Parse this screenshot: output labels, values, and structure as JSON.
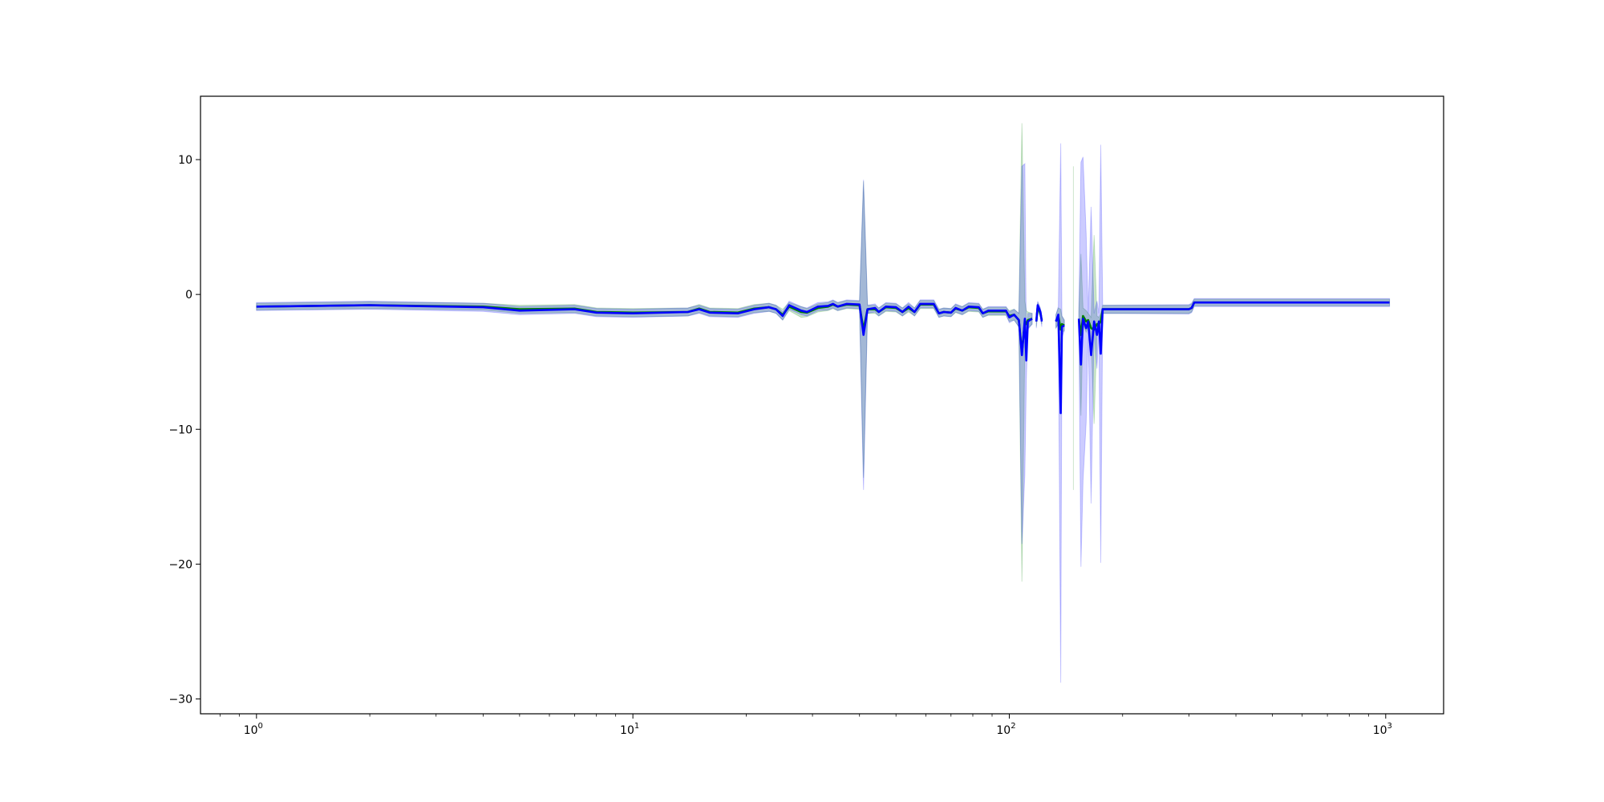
{
  "chart_data": {
    "type": "line",
    "title": "",
    "xlabel": "",
    "ylabel": "",
    "xscale": "log",
    "xlim": [
      0.71,
      1425
    ],
    "ylim": [
      -31.1,
      14.7
    ],
    "grid": false,
    "x_ticks": [
      {
        "value": 1,
        "base": "10",
        "exp": "0"
      },
      {
        "value": 10,
        "base": "10",
        "exp": "1"
      },
      {
        "value": 100,
        "base": "10",
        "exp": "2"
      },
      {
        "value": 1000,
        "base": "10",
        "exp": "3"
      }
    ],
    "y_ticks": [
      {
        "value": 10,
        "label": "10"
      },
      {
        "value": 0,
        "label": "0"
      },
      {
        "value": -10,
        "label": "−10"
      },
      {
        "value": -20,
        "label": "−20"
      },
      {
        "value": -30,
        "label": "−30"
      }
    ],
    "series": [
      {
        "color": "#008000",
        "band_color": "#008000",
        "points": [
          [
            1,
            -0.9,
            0.25
          ],
          [
            2,
            -0.8,
            0.25
          ],
          [
            4,
            -0.9,
            0.25
          ],
          [
            5,
            -1.1,
            0.3
          ],
          [
            7,
            -1.05,
            0.3
          ],
          [
            8,
            -1.3,
            0.3
          ],
          [
            10,
            -1.35,
            0.3
          ],
          [
            14,
            -1.3,
            0.3
          ],
          [
            15,
            -1.05,
            0.3
          ],
          [
            16,
            -1.3,
            0.3
          ],
          [
            19,
            -1.35,
            0.3
          ],
          [
            21,
            -1.05,
            0.3
          ],
          [
            23,
            -0.95,
            0.3
          ],
          [
            24,
            -1.1,
            0.3
          ],
          [
            25,
            -1.5,
            0.4
          ],
          [
            26,
            -0.9,
            0.3
          ],
          [
            28,
            -1.3,
            0.4
          ],
          [
            29,
            -1.35,
            0.3
          ],
          [
            31,
            -1.0,
            0.3
          ],
          [
            33,
            -0.9,
            0.3
          ],
          [
            34,
            -0.75,
            0.3
          ],
          [
            35,
            -0.9,
            0.3
          ],
          [
            37,
            -0.75,
            0.3
          ],
          [
            40,
            -0.8,
            0.3
          ],
          [
            41,
            -2.6,
            11
          ],
          [
            42,
            -1.1,
            0.3
          ],
          [
            44,
            -1.1,
            0.3
          ],
          [
            45,
            -1.3,
            0.3
          ],
          [
            47,
            -0.95,
            0.3
          ],
          [
            50,
            -1.0,
            0.3
          ],
          [
            52,
            -1.3,
            0.3
          ],
          [
            54,
            -1.0,
            0.3
          ],
          [
            56,
            -1.3,
            0.3
          ],
          [
            58,
            -0.75,
            0.3
          ],
          [
            63,
            -0.75,
            0.3
          ],
          [
            65,
            -1.4,
            0.3
          ],
          [
            67,
            -1.3,
            0.3
          ],
          [
            70,
            -1.35,
            0.3
          ],
          [
            72,
            -1.05,
            0.3
          ],
          [
            75,
            -1.2,
            0.3
          ],
          [
            78,
            -0.95,
            0.3
          ],
          [
            83,
            -1.0,
            0.3
          ],
          [
            85,
            -1.4,
            0.3
          ],
          [
            88,
            -1.25,
            0.3
          ],
          [
            98,
            -1.25,
            0.3
          ],
          [
            100,
            -1.6,
            0.4
          ],
          [
            103,
            -1.5,
            0.4
          ],
          [
            106,
            -1.9,
            0.5
          ],
          [
            108,
            -4.3,
            17
          ],
          [
            110,
            -2.0,
            1.5
          ],
          [
            111,
            -2.2,
            1.0
          ],
          [
            112,
            -1.9,
            0.6
          ],
          [
            115,
            -1.8,
            0.4
          ],
          [
            117,
            null,
            0
          ],
          [
            118,
            -2.0,
            0.4
          ],
          [
            119,
            -0.9,
            0.3
          ],
          [
            121,
            -1.4,
            0.3
          ],
          [
            122,
            -1.9,
            0.3
          ],
          [
            123,
            null,
            0
          ],
          [
            133,
            -2.0,
            0.5
          ],
          [
            135,
            -1.6,
            0.6
          ],
          [
            137,
            -2.6,
            1.5
          ],
          [
            138,
            -2.2,
            0.6
          ],
          [
            140,
            -2.3,
            0.4
          ],
          [
            141,
            null,
            0
          ],
          [
            148,
            -2.5,
            12
          ],
          [
            149,
            null,
            0
          ],
          [
            153,
            -1.8,
            0.5
          ],
          [
            155,
            -3.0,
            6
          ],
          [
            157,
            -1.6,
            0.6
          ],
          [
            160,
            -2.0,
            0.8
          ],
          [
            162,
            -1.9,
            0.5
          ],
          [
            165,
            -2.5,
            0.8
          ],
          [
            168,
            -2.6,
            7
          ],
          [
            171,
            -2.2,
            0.6
          ],
          [
            173,
            -2.2,
            0.5
          ],
          [
            175,
            -2.0,
            0.6
          ],
          [
            177,
            -1.1,
            0.3
          ],
          [
            300,
            -1.1,
            0.3
          ],
          [
            305,
            -1.0,
            0.3
          ],
          [
            310,
            -0.6,
            0.25
          ],
          [
            1024,
            -0.6,
            0.25
          ]
        ]
      },
      {
        "color": "#0000ff",
        "band_color": "#0000ff",
        "points": [
          [
            1,
            -0.9,
            0.3
          ],
          [
            2,
            -0.8,
            0.3
          ],
          [
            4,
            -0.95,
            0.3
          ],
          [
            5,
            -1.2,
            0.3
          ],
          [
            7,
            -1.1,
            0.3
          ],
          [
            8,
            -1.35,
            0.3
          ],
          [
            10,
            -1.4,
            0.3
          ],
          [
            14,
            -1.3,
            0.3
          ],
          [
            15,
            -1.1,
            0.3
          ],
          [
            16,
            -1.35,
            0.3
          ],
          [
            19,
            -1.4,
            0.3
          ],
          [
            21,
            -1.1,
            0.3
          ],
          [
            23,
            -0.95,
            0.3
          ],
          [
            24,
            -1.1,
            0.3
          ],
          [
            25,
            -1.6,
            0.3
          ],
          [
            26,
            -0.8,
            0.3
          ],
          [
            28,
            -1.2,
            0.3
          ],
          [
            29,
            -1.3,
            0.3
          ],
          [
            31,
            -0.9,
            0.3
          ],
          [
            33,
            -0.85,
            0.3
          ],
          [
            34,
            -0.7,
            0.3
          ],
          [
            35,
            -0.9,
            0.3
          ],
          [
            37,
            -0.7,
            0.3
          ],
          [
            40,
            -0.75,
            0.3
          ],
          [
            41,
            -3.0,
            11.5
          ],
          [
            42,
            -1.1,
            0.3
          ],
          [
            44,
            -1.0,
            0.3
          ],
          [
            45,
            -1.3,
            0.3
          ],
          [
            47,
            -0.9,
            0.3
          ],
          [
            50,
            -0.95,
            0.3
          ],
          [
            52,
            -1.3,
            0.3
          ],
          [
            54,
            -0.9,
            0.3
          ],
          [
            56,
            -1.3,
            0.3
          ],
          [
            58,
            -0.7,
            0.3
          ],
          [
            63,
            -0.7,
            0.3
          ],
          [
            65,
            -1.4,
            0.3
          ],
          [
            67,
            -1.3,
            0.3
          ],
          [
            70,
            -1.35,
            0.3
          ],
          [
            72,
            -1.0,
            0.3
          ],
          [
            75,
            -1.2,
            0.3
          ],
          [
            78,
            -0.9,
            0.3
          ],
          [
            83,
            -0.95,
            0.3
          ],
          [
            85,
            -1.4,
            0.3
          ],
          [
            88,
            -1.2,
            0.3
          ],
          [
            98,
            -1.2,
            0.3
          ],
          [
            100,
            -1.7,
            0.4
          ],
          [
            103,
            -1.5,
            0.4
          ],
          [
            106,
            -1.9,
            0.5
          ],
          [
            108,
            -4.5,
            14
          ],
          [
            110,
            -1.8,
            11.5
          ],
          [
            111,
            -4.9,
            1.5
          ],
          [
            112,
            -2.0,
            0.6
          ],
          [
            115,
            -1.8,
            0.4
          ],
          [
            117,
            null,
            0
          ],
          [
            118,
            -2.0,
            0.5
          ],
          [
            119,
            -0.8,
            0.3
          ],
          [
            121,
            -1.3,
            0.3
          ],
          [
            122,
            -2.0,
            0.4
          ],
          [
            123,
            null,
            0
          ],
          [
            133,
            -2.0,
            0.5
          ],
          [
            135,
            -1.5,
            0.6
          ],
          [
            137,
            -8.8,
            20
          ],
          [
            138,
            -2.4,
            0.8
          ],
          [
            140,
            -2.3,
            0.4
          ],
          [
            141,
            null,
            0
          ],
          [
            153,
            -1.8,
            0.6
          ],
          [
            155,
            -5.2,
            15
          ],
          [
            157,
            -1.8,
            12
          ],
          [
            160,
            -2.5,
            7
          ],
          [
            162,
            -2.0,
            0.6
          ],
          [
            165,
            -4.5,
            11
          ],
          [
            168,
            -2.0,
            0.6
          ],
          [
            171,
            -3.0,
            2.5
          ],
          [
            173,
            -2.0,
            0.6
          ],
          [
            175,
            -4.4,
            15.5
          ],
          [
            177,
            -1.1,
            0.3
          ],
          [
            300,
            -1.1,
            0.35
          ],
          [
            305,
            -1.0,
            0.35
          ],
          [
            310,
            -0.6,
            0.3
          ],
          [
            1024,
            -0.6,
            0.3
          ]
        ]
      }
    ]
  }
}
